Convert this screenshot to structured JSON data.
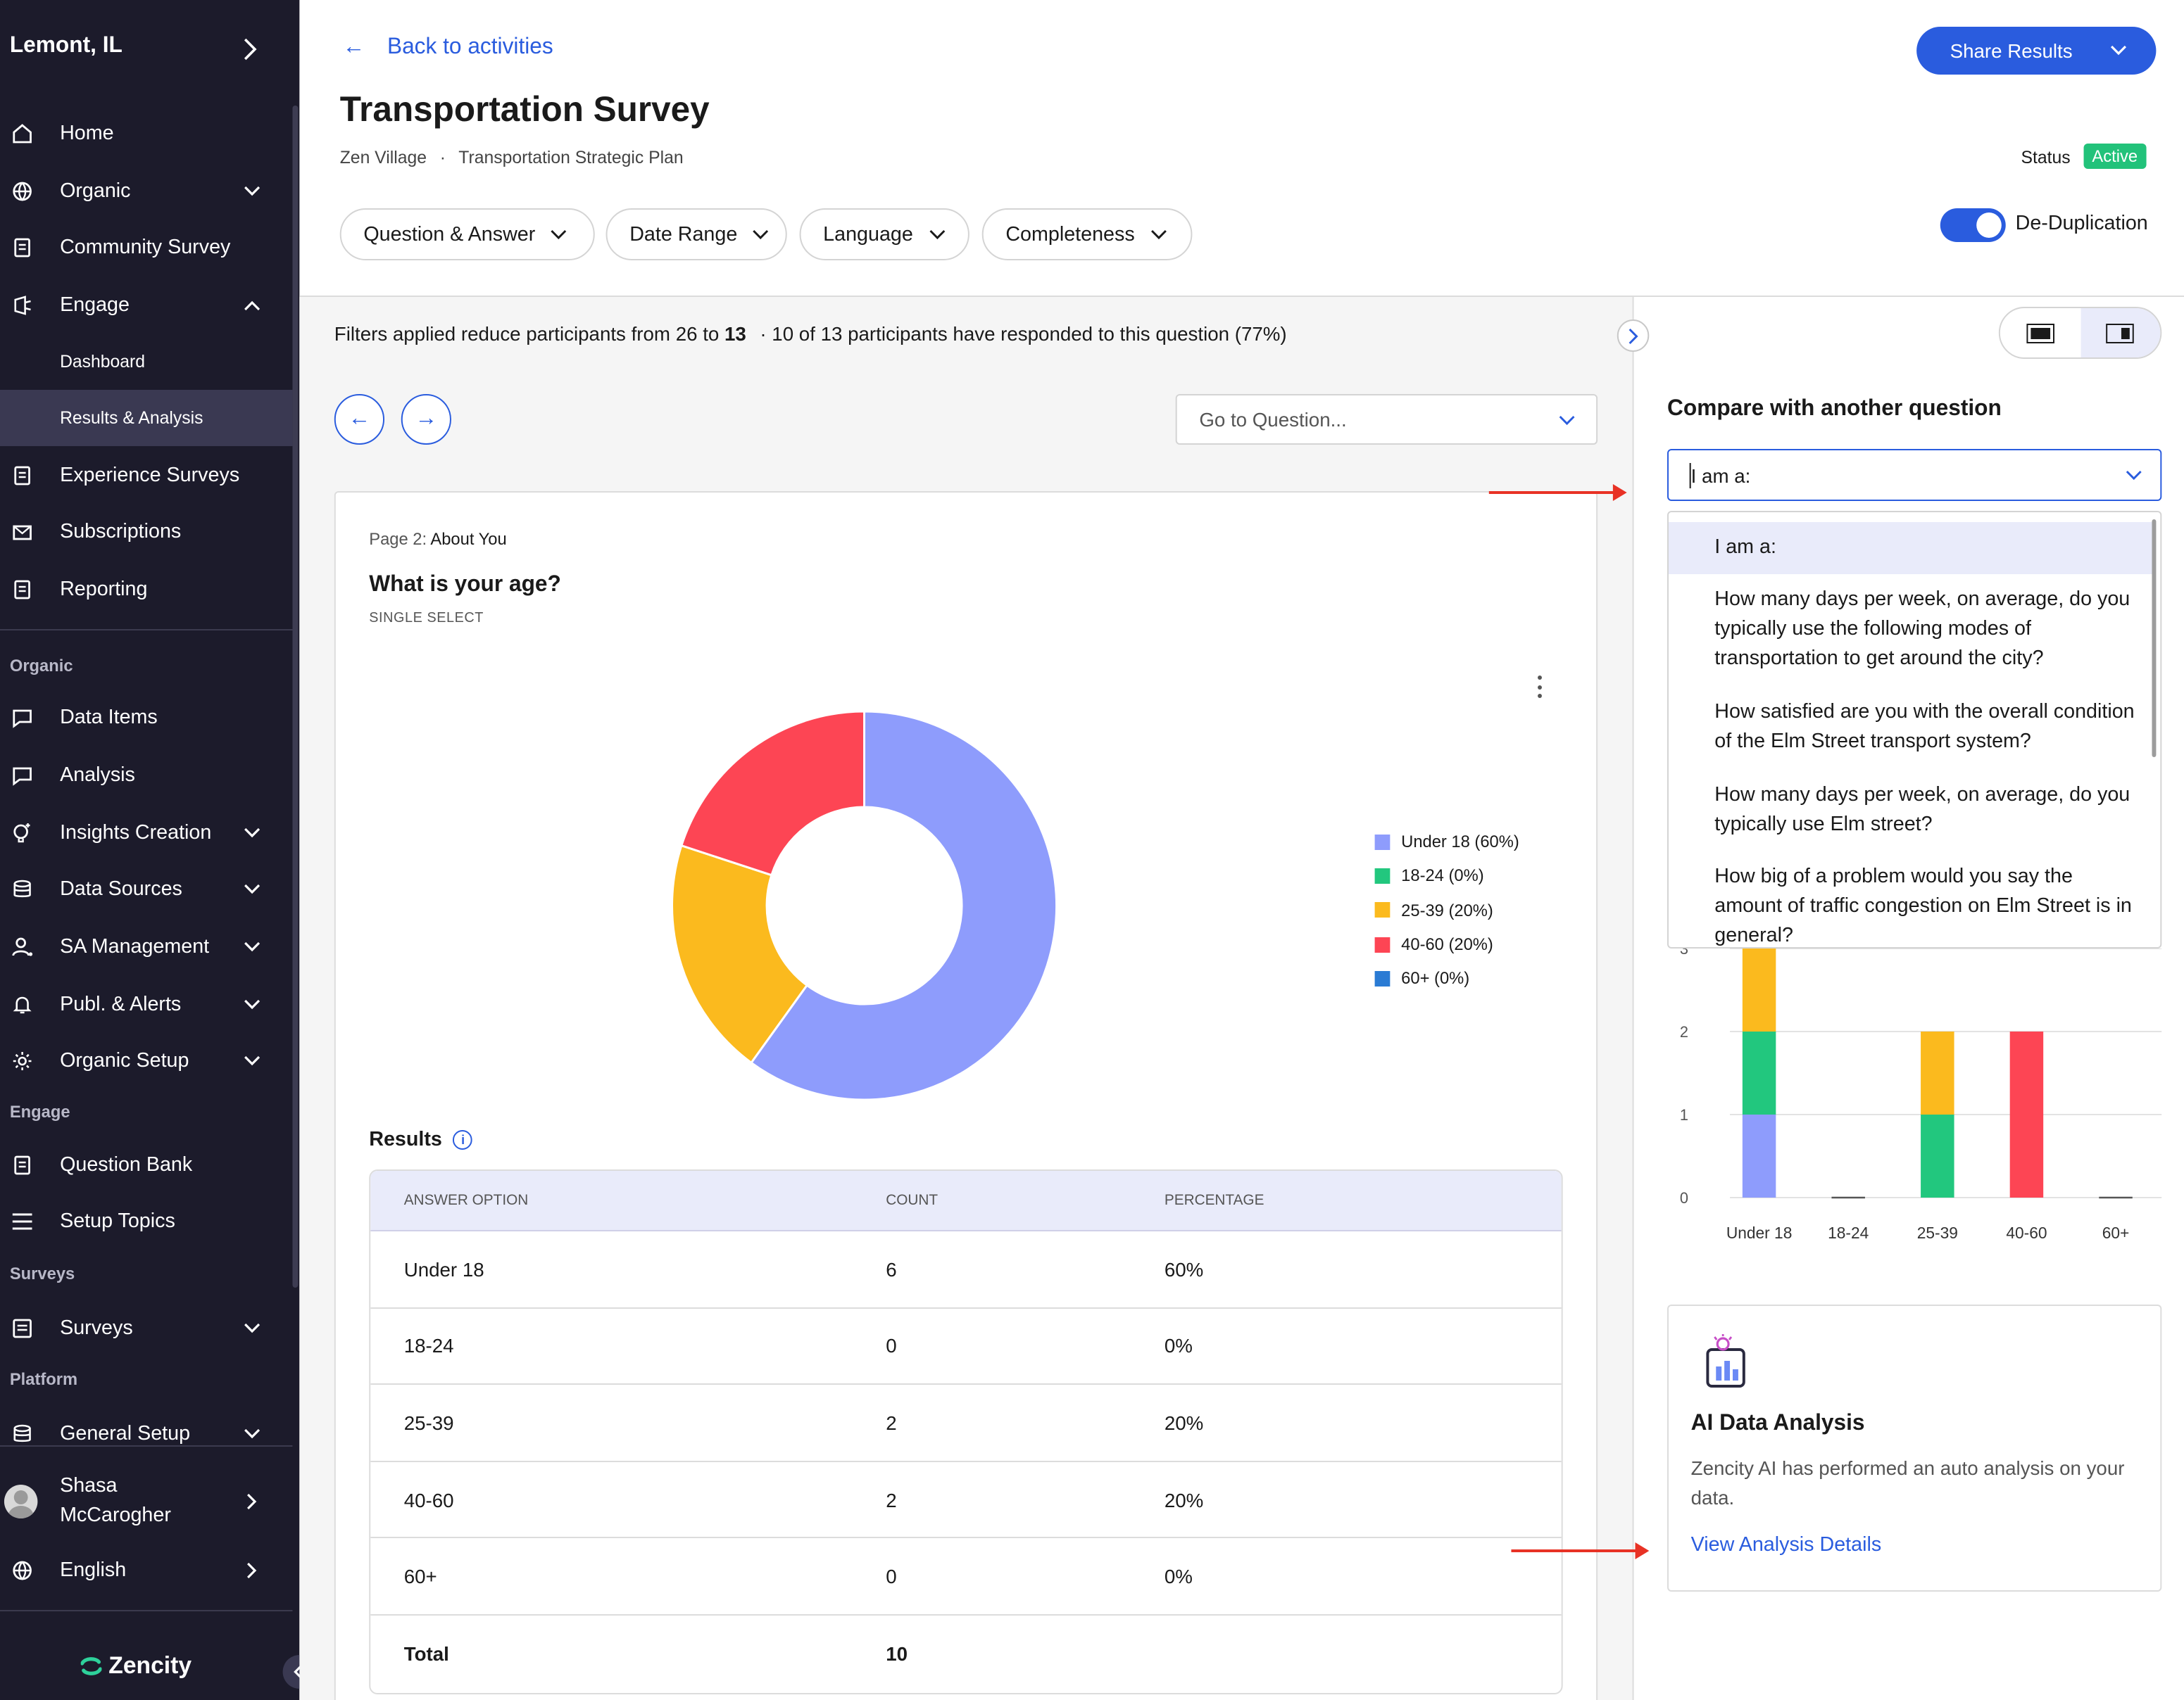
{
  "sidebar": {
    "location": "Lemont, IL",
    "items": [
      {
        "label": "Home",
        "icon": "home-icon"
      },
      {
        "label": "Organic",
        "icon": "globe-icon"
      },
      {
        "label": "Community Survey",
        "icon": "clipboard-icon"
      },
      {
        "label": "Engage",
        "icon": "engage-icon"
      },
      {
        "label": "Dashboard"
      },
      {
        "label": "Results & Analysis"
      },
      {
        "label": "Experience Surveys",
        "icon": "clipboard-icon"
      },
      {
        "label": "Subscriptions",
        "icon": "mail-icon"
      },
      {
        "label": "Reporting",
        "icon": "clipboard-icon"
      }
    ],
    "section_organic": "Organic",
    "organic_items": [
      {
        "label": "Data Items",
        "icon": "chat-icon"
      },
      {
        "label": "Analysis",
        "icon": "chat-icon"
      },
      {
        "label": "Insights Creation",
        "icon": "lightbulb-icon"
      },
      {
        "label": "Data Sources",
        "icon": "database-icon"
      },
      {
        "label": "SA Management",
        "icon": "user-gear-icon"
      },
      {
        "label": "Publ. & Alerts",
        "icon": "bell-icon"
      },
      {
        "label": "Organic Setup",
        "icon": "gear-icon"
      }
    ],
    "section_engage": "Engage",
    "engage_items": [
      {
        "label": "Question Bank",
        "icon": "clipboard-icon"
      },
      {
        "label": "Setup Topics",
        "icon": "list-icon"
      }
    ],
    "section_surveys": "Surveys",
    "surveys_items": [
      {
        "label": "Surveys",
        "icon": "survey-icon"
      }
    ],
    "section_platform": "Platform",
    "platform_items": [
      {
        "label": "General Setup",
        "icon": "database-icon"
      }
    ],
    "user_name": "Shasa McCarogher",
    "language": "English",
    "brand": "Zencity"
  },
  "header": {
    "back_label": "Back to activities",
    "title": "Transportation Survey",
    "breadcrumb_org": "Zen Village",
    "breadcrumb_sep": "·",
    "breadcrumb_plan": "Transportation Strategic Plan",
    "share_label": "Share Results",
    "status_label": "Status",
    "status_value": "Active",
    "filters": [
      "Question & Answer",
      "Date Range",
      "Language",
      "Completeness"
    ],
    "dedup_label": "De-Duplication"
  },
  "colors": {
    "accent": "#2a5cde",
    "under18": "#8e9cfc",
    "r18_24": "#22c77e",
    "r25_39": "#fbba1e",
    "r40_60": "#fd4554",
    "r60p": "#2a7bd4"
  },
  "main": {
    "filter_info_prefix": "Filters applied reduce participants from 26 to ",
    "filter_info_bold": "13",
    "filter_info_suffix": "·  10 of 13 participants have responded to this question (77%)",
    "goto_placeholder": "Go to Question...",
    "page_label": "Page 2:",
    "page_name": "About You",
    "question": "What is your age?",
    "question_type": "SINGLE SELECT",
    "results_label": "Results",
    "table": {
      "headers": [
        "ANSWER OPTION",
        "COUNT",
        "PERCENTAGE"
      ],
      "rows": [
        [
          "Under 18",
          "6",
          "60%"
        ],
        [
          "18-24",
          "0",
          "0%"
        ],
        [
          "25-39",
          "2",
          "20%"
        ],
        [
          "40-60",
          "2",
          "20%"
        ],
        [
          "60+",
          "0",
          "0%"
        ]
      ],
      "total_label": "Total",
      "total_count": "10"
    }
  },
  "chart_data": [
    {
      "type": "pie",
      "categories": [
        "Under 18",
        "18-24",
        "25-39",
        "40-60",
        "60+"
      ],
      "values": [
        60,
        0,
        20,
        20,
        0
      ],
      "legend": [
        "Under 18 (60%)",
        "18-24 (0%)",
        "25-39 (20%)",
        "40-60 (20%)",
        "60+ (0%)"
      ],
      "legend_position": "right"
    },
    {
      "type": "bar",
      "categories": [
        "Under 18",
        "18-24",
        "25-39",
        "40-60",
        "60+"
      ],
      "series": [
        {
          "values": [
            1,
            0,
            0,
            0,
            0
          ]
        },
        {
          "values": [
            1,
            0,
            1,
            0,
            0
          ]
        },
        {
          "values": [
            1,
            0,
            1,
            0,
            0
          ]
        },
        {
          "values": [
            0,
            0,
            0,
            2,
            0
          ]
        }
      ],
      "yticks": [
        "0",
        "1",
        "2",
        "3"
      ],
      "ylim": [
        0,
        3
      ],
      "stacked": true,
      "grid": true
    }
  ],
  "panel": {
    "compare_label": "Compare with another question",
    "compare_value": "I am a:",
    "options": [
      "I am a:",
      "How many days per week, on average, do you typically use the following modes of transportation to get around the city?",
      "How satisfied are you with the overall condition of the Elm Street transport system?",
      "How many days per week, on average, do you typically use Elm street?",
      "How big of a problem would you say the amount of traffic congestion on Elm Street is in general?"
    ],
    "ai_title": "AI Data Analysis",
    "ai_desc": "Zencity AI has performed an auto analysis on your data.",
    "ai_link": "View Analysis Details"
  }
}
